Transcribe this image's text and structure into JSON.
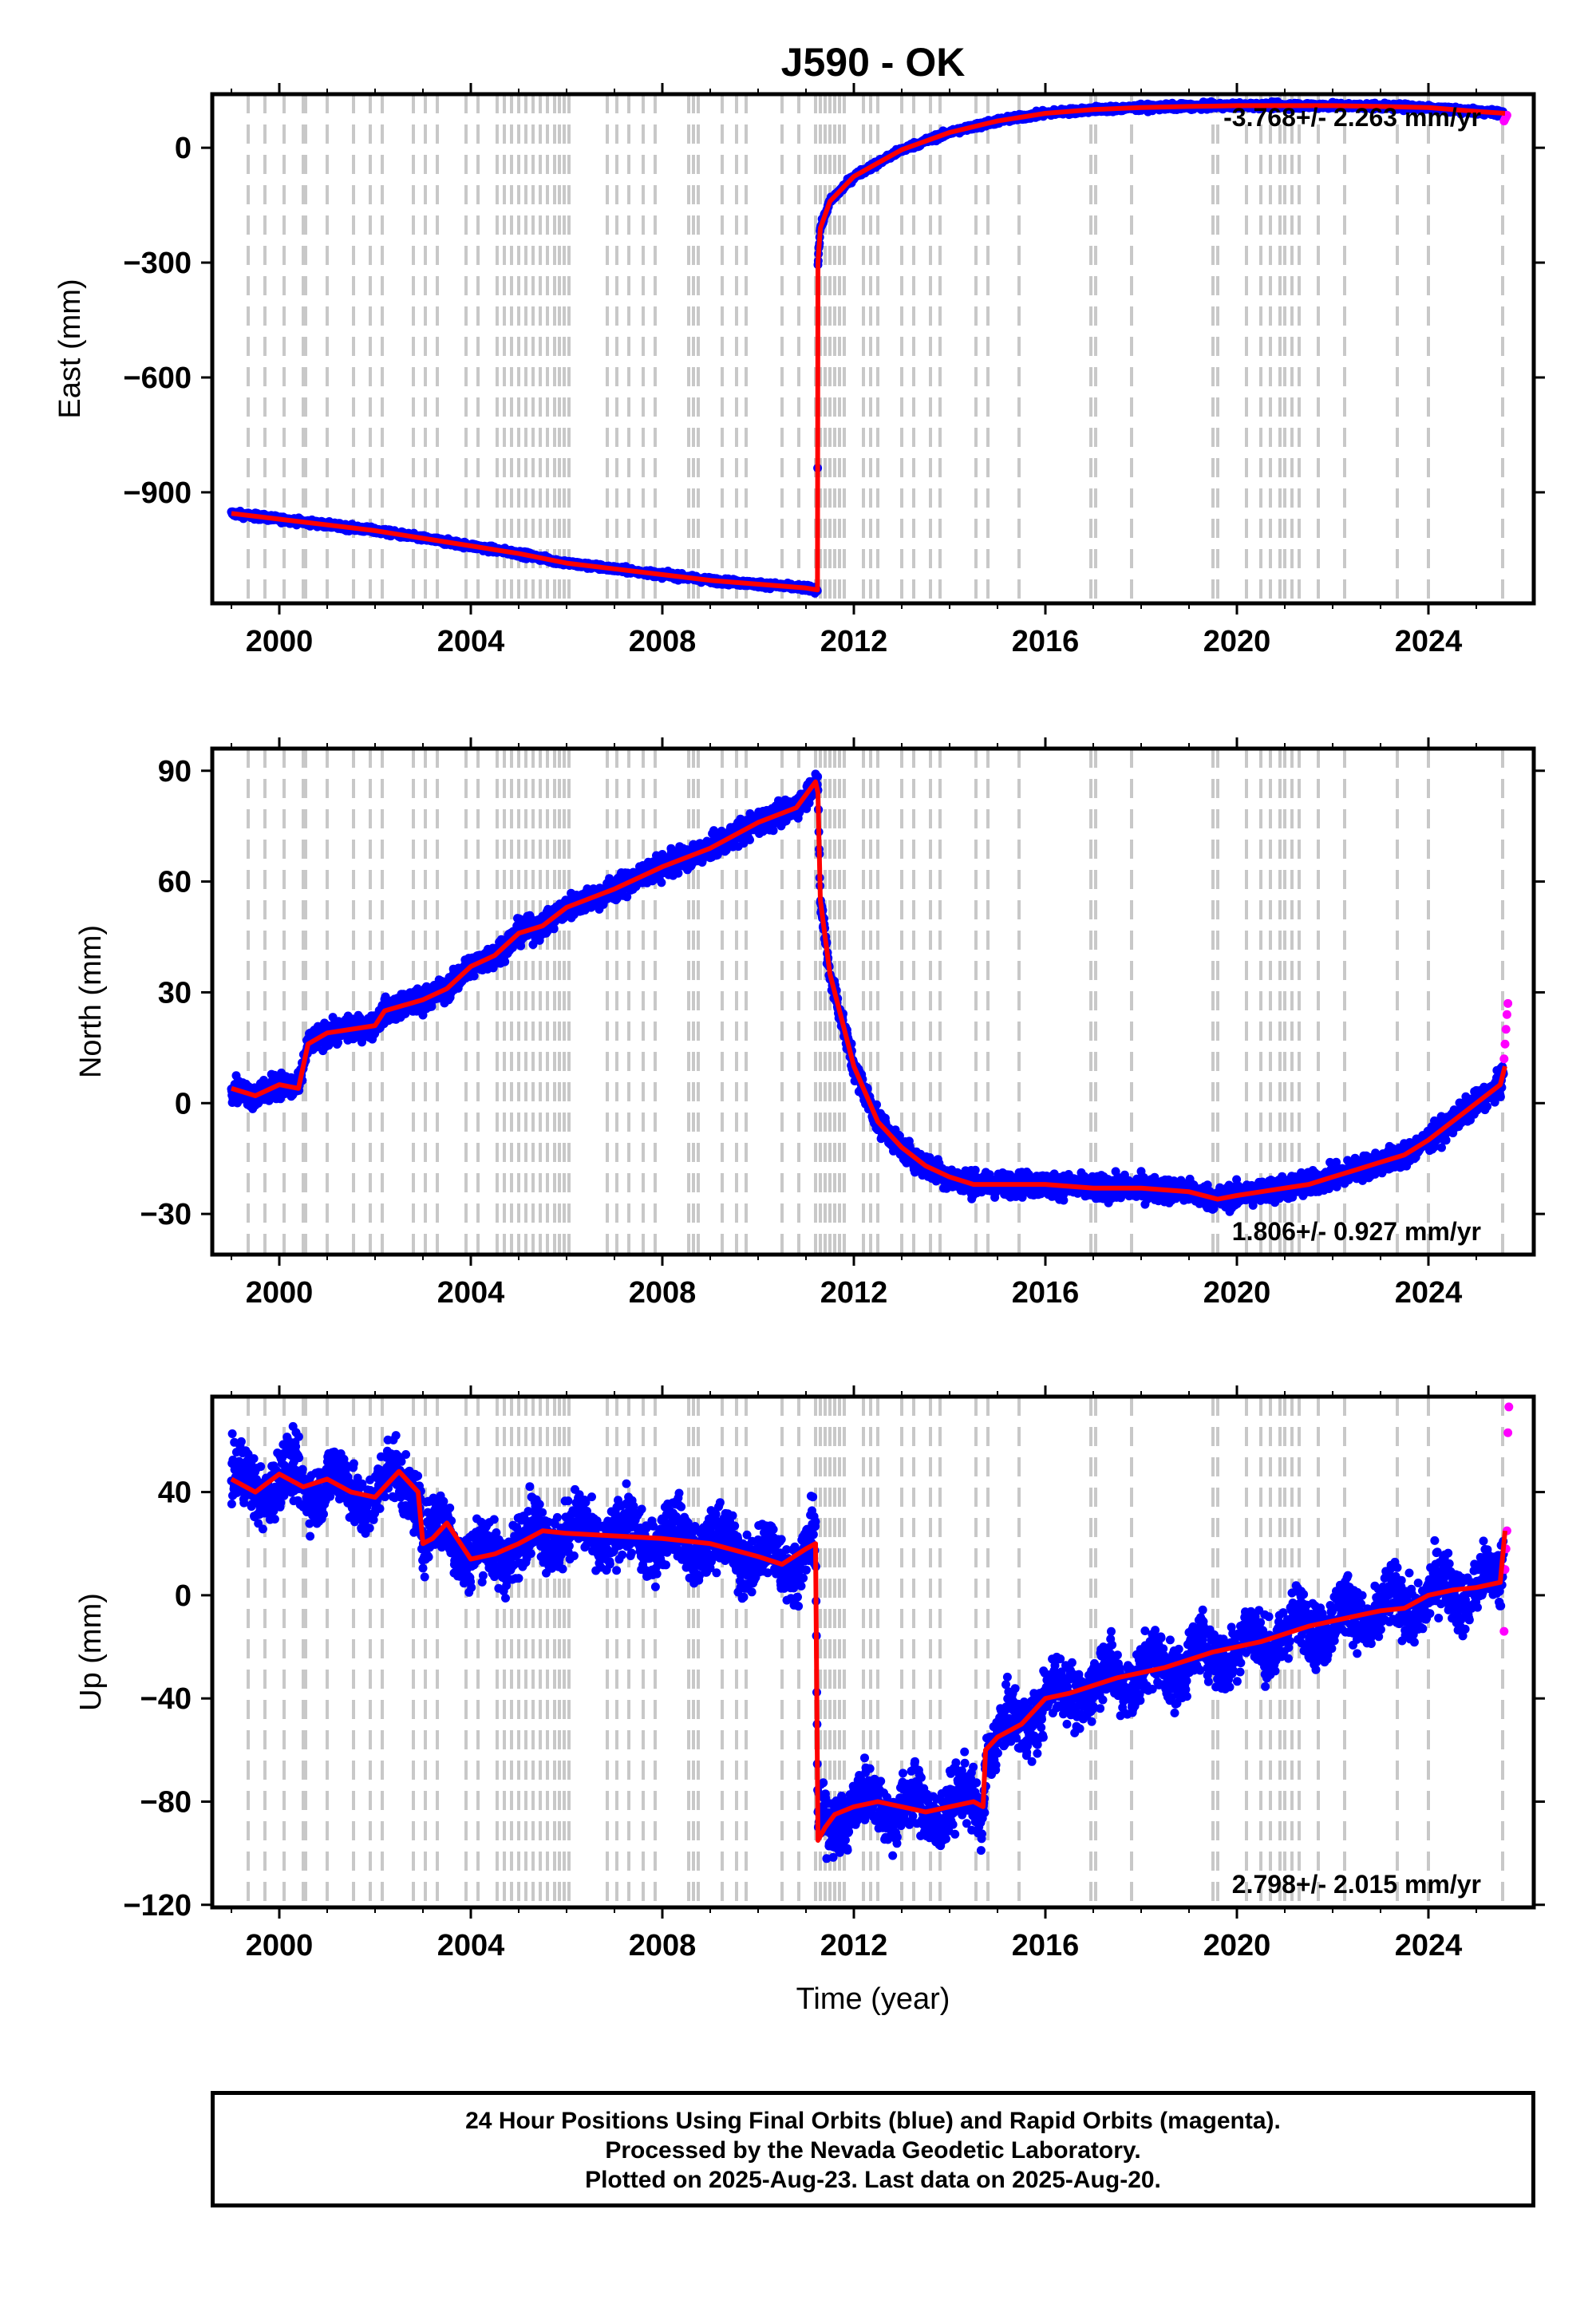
{
  "title": "J590 - OK",
  "xlabel": "Time (year)",
  "footer": {
    "line1": "24 Hour Positions Using Final Orbits (blue) and Rapid Orbits (magenta).",
    "line2": "Processed by the Nevada Geodetic Laboratory.",
    "line3": "Plotted on 2025-Aug-23. Last data on 2025-Aug-20."
  },
  "colors": {
    "final_orbits": "#0000ff",
    "rapid_orbits": "#ff00ff",
    "model": "#ff0000",
    "event_lines": "#c8c8c8"
  },
  "event_years": [
    1999.35,
    1999.7,
    2000.1,
    2000.5,
    2000.55,
    2001.0,
    2001.55,
    2001.9,
    2002.15,
    2002.8,
    2003.05,
    2003.3,
    2003.9,
    2004.15,
    2004.55,
    2004.7,
    2004.85,
    2005.0,
    2005.15,
    2005.3,
    2005.45,
    2005.6,
    2005.75,
    2005.85,
    2005.95,
    2006.05,
    2006.85,
    2007.05,
    2007.3,
    2007.6,
    2007.85,
    2008.55,
    2008.65,
    2008.75,
    2009.25,
    2009.55,
    2009.75,
    2010.5,
    2010.85,
    2011.2,
    2011.3,
    2011.4,
    2011.5,
    2011.6,
    2011.7,
    2011.8,
    2012.2,
    2012.35,
    2012.5,
    2013.0,
    2013.25,
    2013.6,
    2013.8,
    2014.55,
    2014.8,
    2015.45,
    2016.95,
    2017.05,
    2017.8,
    2019.5,
    2019.6,
    2020.2,
    2020.5,
    2020.7,
    2020.9,
    2021.0,
    2021.15,
    2021.3,
    2021.7,
    2022.25,
    2023.35,
    2024.0,
    2025.55
  ],
  "chart_data": [
    {
      "type": "scatter",
      "panel": "east",
      "ylabel": "East (mm)",
      "ylim": [
        -1190,
        140
      ],
      "yticks": [
        -900,
        -600,
        -300,
        0
      ],
      "xlim": [
        1998.6,
        2026.2
      ],
      "xticks": [
        2000,
        2004,
        2008,
        2012,
        2016,
        2020,
        2024
      ],
      "rate_label": "-3.768+/- 2.263 mm/yr",
      "rate_position": "top-right",
      "model_trend": {
        "x": [
          1999.0,
          2000.0,
          2001.0,
          2002.0,
          2003.0,
          2004.0,
          2005.0,
          2006.0,
          2007.0,
          2008.0,
          2009.0,
          2010.0,
          2011.0,
          2011.24,
          2011.25,
          2011.3,
          2011.5,
          2012.0,
          2012.5,
          2013.0,
          2014.0,
          2015.0,
          2016.0,
          2017.0,
          2018.0,
          2019.0,
          2020.0,
          2021.0,
          2022.0,
          2023.0,
          2024.0,
          2025.0,
          2025.6
        ],
        "y": [
          -955,
          -970,
          -985,
          -1000,
          -1020,
          -1040,
          -1060,
          -1085,
          -1100,
          -1115,
          -1130,
          -1140,
          -1150,
          -1155,
          -300,
          -210,
          -140,
          -75,
          -40,
          -5,
          40,
          70,
          90,
          100,
          105,
          108,
          110,
          110,
          110,
          108,
          105,
          95,
          90
        ]
      },
      "final_noise_mm": 6,
      "rapid_points": {
        "x": [
          2025.58,
          2025.6,
          2025.62,
          2025.64
        ],
        "y": [
          70,
          75,
          80,
          85
        ]
      }
    },
    {
      "type": "scatter",
      "panel": "north",
      "ylabel": "North (mm)",
      "ylim": [
        -41,
        96
      ],
      "yticks": [
        -30,
        0,
        30,
        60,
        90
      ],
      "xlim": [
        1998.6,
        2026.2
      ],
      "xticks": [
        2000,
        2004,
        2008,
        2012,
        2016,
        2020,
        2024
      ],
      "rate_label": "1.806+/- 0.927 mm/yr",
      "rate_position": "bottom-right",
      "model_trend": {
        "x": [
          1999.0,
          1999.5,
          2000.0,
          2000.4,
          2000.6,
          2001.0,
          2002.0,
          2002.2,
          2003.0,
          2003.5,
          2004.0,
          2004.5,
          2005.0,
          2005.5,
          2006.0,
          2007.0,
          2008.0,
          2009.0,
          2010.0,
          2010.8,
          2011.2,
          2011.25,
          2011.3,
          2011.5,
          2012.0,
          2012.5,
          2013.0,
          2013.5,
          2014.0,
          2014.5,
          2015.0,
          2016.0,
          2017.0,
          2018.0,
          2019.0,
          2019.6,
          2020.0,
          2020.5,
          2021.0,
          2021.5,
          2022.0,
          2022.5,
          2023.0,
          2023.5,
          2024.0,
          2024.5,
          2025.0,
          2025.5,
          2025.6
        ],
        "y": [
          4,
          2,
          5,
          4,
          16,
          19,
          21,
          25,
          28,
          31,
          37,
          40,
          46,
          48,
          53,
          58,
          64,
          69,
          76,
          80,
          87,
          84,
          55,
          35,
          10,
          -5,
          -12,
          -17,
          -20,
          -22,
          -22,
          -22,
          -23,
          -23,
          -24,
          -26,
          -25,
          -24,
          -23,
          -22,
          -20,
          -18,
          -16,
          -14,
          -10,
          -5,
          0,
          5,
          10
        ]
      },
      "final_noise_mm": 2.5,
      "rapid_points": {
        "x": [
          2025.58,
          2025.6,
          2025.62,
          2025.64,
          2025.66
        ],
        "y": [
          12,
          16,
          20,
          24,
          27
        ]
      }
    },
    {
      "type": "scatter",
      "panel": "up",
      "ylabel": "Up (mm)",
      "ylim": [
        -121,
        77
      ],
      "yticks": [
        -120,
        -80,
        -40,
        0,
        40
      ],
      "xlim": [
        1998.6,
        2026.2
      ],
      "xticks": [
        2000,
        2004,
        2008,
        2012,
        2016,
        2020,
        2024
      ],
      "rate_label": "2.798+/- 2.015 mm/yr",
      "rate_position": "bottom-right",
      "model_trend": {
        "x": [
          1999.0,
          1999.5,
          2000.0,
          2000.5,
          2001.0,
          2001.5,
          2002.0,
          2002.5,
          2002.9,
          2003.0,
          2003.2,
          2003.5,
          2004.0,
          2004.5,
          2005.0,
          2005.5,
          2006.0,
          2007.0,
          2008.0,
          2009.0,
          2010.0,
          2010.5,
          2011.0,
          2011.2,
          2011.25,
          2011.4,
          2011.6,
          2012.0,
          2012.5,
          2013.0,
          2013.5,
          2014.0,
          2014.5,
          2014.7,
          2014.75,
          2015.0,
          2015.5,
          2016.0,
          2016.5,
          2017.0,
          2017.5,
          2018.0,
          2018.5,
          2019.0,
          2019.5,
          2020.0,
          2020.5,
          2021.0,
          2021.5,
          2022.0,
          2022.5,
          2023.0,
          2023.5,
          2024.0,
          2024.5,
          2025.0,
          2025.5,
          2025.6
        ],
        "y": [
          45,
          40,
          47,
          42,
          45,
          40,
          38,
          48,
          40,
          20,
          22,
          28,
          14,
          16,
          20,
          25,
          24,
          23,
          22,
          20,
          15,
          12,
          18,
          20,
          -95,
          -90,
          -85,
          -82,
          -80,
          -82,
          -84,
          -82,
          -80,
          -82,
          -60,
          -55,
          -50,
          -40,
          -38,
          -35,
          -32,
          -30,
          -28,
          -25,
          -22,
          -20,
          -18,
          -15,
          -12,
          -10,
          -8,
          -6,
          -5,
          0,
          2,
          3,
          5,
          25
        ]
      },
      "final_noise_mm": 9,
      "rapid_points": {
        "x": [
          2025.58,
          2025.6,
          2025.62,
          2025.64,
          2025.66,
          2025.68
        ],
        "y": [
          -14,
          10,
          18,
          25,
          63,
          73
        ]
      }
    }
  ]
}
